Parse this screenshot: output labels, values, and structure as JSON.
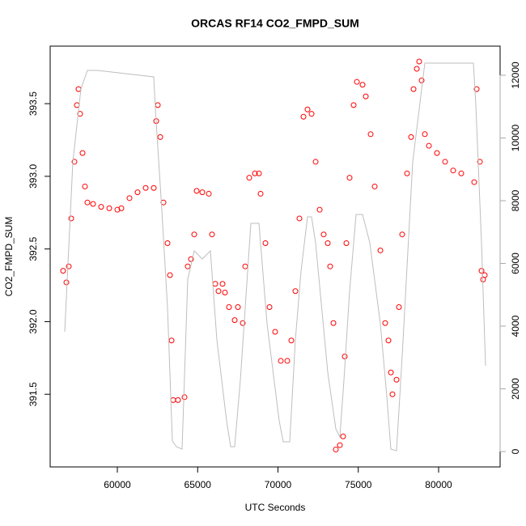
{
  "chart_data": {
    "type": "scatter",
    "title": "ORCAS RF14 CO2_FMPD_SUM",
    "x_label": "UTC Seconds",
    "y_label": "CO2_FMPD_SUM",
    "xlim": [
      55819,
      83829
    ],
    "ylim": [
      391.0,
      393.896
    ],
    "y2lim": [
      -490,
      12929
    ],
    "xticks": [
      60000,
      65000,
      70000,
      75000,
      80000
    ],
    "yticks": [
      391.5,
      {
        "value": 392,
        "label": "392.0"
      },
      392.5,
      {
        "value": 393,
        "label": "393.0"
      },
      393.5
    ],
    "y2ticks": [
      0,
      2000,
      4000,
      6000,
      8000,
      10000,
      12000
    ],
    "series": [
      {
        "color": "#ff0000",
        "style": "points",
        "x": [
          56625,
          56827,
          56978,
          57129,
          57330,
          57481,
          57582,
          57683,
          57834,
          57985,
          58136,
          58489,
          58993,
          59497,
          60001,
          60252,
          60756,
          61260,
          61764,
          62268,
          62419,
          62520,
          62671,
          62872,
          63124,
          63275,
          63376,
          63477,
          63779,
          64182,
          64384,
          64585,
          64787,
          64938,
          65290,
          65694,
          65895,
          66097,
          66298,
          66550,
          66701,
          66953,
          67306,
          67507,
          67809,
          67961,
          68212,
          68565,
          68817,
          68918,
          69220,
          69472,
          69825,
          70178,
          70580,
          70832,
          71084,
          71336,
          71588,
          71840,
          72092,
          72344,
          72596,
          72847,
          73099,
          73250,
          73452,
          73603,
          73855,
          74056,
          74157,
          74258,
          74459,
          74711,
          74913,
          75265,
          75467,
          75769,
          76021,
          76374,
          76676,
          76877,
          77029,
          77129,
          77381,
          77532,
          77734,
          78036,
          78288,
          78439,
          78641,
          78792,
          78943,
          79145,
          79397,
          79901,
          80404,
          80908,
          81412,
          82218,
          82369,
          82571,
          82672,
          82772,
          82873
        ],
        "values": [
          392.35,
          392.27,
          392.38,
          392.71,
          393.1,
          393.49,
          393.6,
          393.43,
          393.16,
          392.93,
          392.82,
          392.81,
          392.79,
          392.78,
          392.77,
          392.78,
          392.85,
          392.89,
          392.92,
          392.92,
          393.38,
          393.49,
          393.27,
          392.82,
          392.54,
          392.32,
          391.87,
          391.46,
          391.46,
          391.48,
          392.38,
          392.43,
          392.6,
          392.9,
          392.89,
          392.88,
          392.6,
          392.26,
          392.21,
          392.26,
          392.2,
          392.1,
          392.01,
          392.1,
          391.99,
          392.38,
          392.99,
          393.02,
          393.02,
          392.88,
          392.54,
          392.1,
          391.93,
          391.73,
          391.73,
          391.87,
          392.21,
          392.71,
          393.41,
          393.46,
          393.43,
          393.1,
          392.77,
          392.6,
          392.54,
          392.38,
          391.99,
          391.12,
          391.15,
          391.21,
          391.76,
          392.54,
          392.99,
          393.49,
          393.65,
          393.63,
          393.55,
          393.29,
          392.93,
          392.49,
          391.99,
          391.87,
          391.65,
          391.5,
          391.6,
          392.1,
          392.6,
          393.02,
          393.27,
          393.6,
          393.74,
          393.79,
          393.66,
          393.29,
          393.21,
          393.16,
          393.1,
          393.04,
          393.02,
          392.96,
          393.6,
          393.1,
          392.35,
          392.29,
          392.32
        ]
      },
      {
        "color": "#bebebe",
        "style": "line",
        "axis": "y2",
        "x": [
          56726,
          57230,
          57733,
          58136,
          58741,
          62268,
          62368,
          62771,
          63124,
          63426,
          63678,
          64031,
          64384,
          64787,
          65290,
          65794,
          66197,
          66801,
          67053,
          67306,
          67658,
          68313,
          68817,
          69321,
          70077,
          70328,
          70731,
          71084,
          71437,
          71840,
          72092,
          72344,
          73099,
          73603,
          73855,
          74107,
          74459,
          74862,
          75265,
          75718,
          76374,
          76777,
          77029,
          77381,
          77734,
          78389,
          79145,
          82167,
          82318,
          82672,
          82924
        ],
        "values": [
          3819,
          9239,
          11561,
          12155,
          12155,
          11948,
          10916,
          7690,
          4594,
          336,
          155,
          78,
          5497,
          6400,
          6142,
          6400,
          3561,
          981,
          155,
          155,
          2271,
          7277,
          7277,
          4078,
          981,
          310,
          310,
          3561,
          5755,
          7484,
          7484,
          6658,
          2529,
          723,
          465,
          2271,
          5110,
          7561,
          7561,
          6658,
          4078,
          1755,
          78,
          26,
          3045,
          9239,
          12387,
          12387,
          11045,
          6658,
          2736
        ]
      }
    ]
  }
}
